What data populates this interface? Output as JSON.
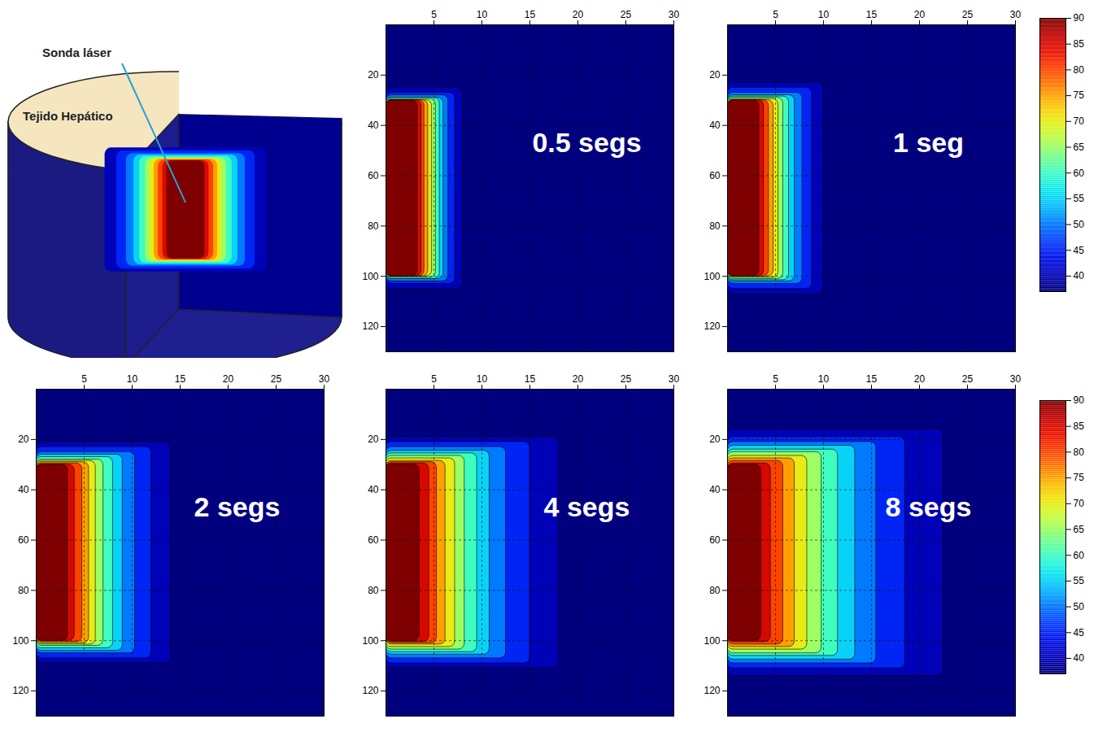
{
  "illustration": {
    "probe_label": "Sonda láser",
    "tissue_label": "Tejido Hepático"
  },
  "colorbar": {
    "range": [
      37,
      90
    ],
    "ticks": [
      40,
      45,
      50,
      55,
      60,
      65,
      70,
      75,
      80,
      85,
      90
    ]
  },
  "chart_data": [
    {
      "type": "contour",
      "title": "0.5 segs",
      "xlim": [
        0,
        30
      ],
      "xticks": [
        5,
        10,
        15,
        20,
        25,
        30
      ],
      "ylim": [
        0,
        130
      ],
      "yticks": [
        20,
        40,
        60,
        80,
        100,
        120
      ],
      "grid": true,
      "base_level": 37,
      "bands": [
        {
          "level": 40,
          "r_max": 8.0,
          "z_min": 25,
          "z_max": 105
        },
        {
          "level": 45,
          "r_max": 7.2,
          "z_min": 27,
          "z_max": 103
        },
        {
          "level": 50,
          "r_max": 6.5,
          "z_min": 28,
          "z_max": 102
        },
        {
          "level": 55,
          "r_max": 6.0,
          "z_min": 29,
          "z_max": 101
        },
        {
          "level": 60,
          "r_max": 5.6,
          "z_min": 29,
          "z_max": 101
        },
        {
          "level": 65,
          "r_max": 5.2,
          "z_min": 29.5,
          "z_max": 100.5
        },
        {
          "level": 70,
          "r_max": 4.8,
          "z_min": 30,
          "z_max": 100
        },
        {
          "level": 75,
          "r_max": 4.4,
          "z_min": 30,
          "z_max": 100
        },
        {
          "level": 80,
          "r_max": 4.0,
          "z_min": 30,
          "z_max": 100
        },
        {
          "level": 85,
          "r_max": 3.7,
          "z_min": 30,
          "z_max": 100
        },
        {
          "level": 90,
          "r_max": 3.3,
          "z_min": 30,
          "z_max": 100
        }
      ]
    },
    {
      "type": "contour",
      "title": "1 seg",
      "xlim": [
        0,
        30
      ],
      "xticks": [
        5,
        10,
        15,
        20,
        25,
        30
      ],
      "ylim": [
        0,
        130
      ],
      "yticks": [
        20,
        40,
        60,
        80,
        100,
        120
      ],
      "grid": true,
      "base_level": 37,
      "bands": [
        {
          "level": 40,
          "r_max": 10.0,
          "z_min": 23,
          "z_max": 107
        },
        {
          "level": 45,
          "r_max": 8.8,
          "z_min": 25,
          "z_max": 105
        },
        {
          "level": 50,
          "r_max": 7.8,
          "z_min": 27,
          "z_max": 103
        },
        {
          "level": 55,
          "r_max": 7.0,
          "z_min": 28,
          "z_max": 102
        },
        {
          "level": 60,
          "r_max": 6.4,
          "z_min": 28.5,
          "z_max": 101.5
        },
        {
          "level": 65,
          "r_max": 5.8,
          "z_min": 29,
          "z_max": 101
        },
        {
          "level": 70,
          "r_max": 5.3,
          "z_min": 29.5,
          "z_max": 100.5
        },
        {
          "level": 75,
          "r_max": 4.8,
          "z_min": 30,
          "z_max": 100
        },
        {
          "level": 80,
          "r_max": 4.3,
          "z_min": 30,
          "z_max": 100
        },
        {
          "level": 85,
          "r_max": 3.8,
          "z_min": 30,
          "z_max": 100
        },
        {
          "level": 90,
          "r_max": 3.3,
          "z_min": 30,
          "z_max": 100
        }
      ]
    },
    {
      "type": "contour",
      "title": "2 segs",
      "xlim": [
        0,
        30
      ],
      "xticks": [
        5,
        10,
        15,
        20,
        25,
        30
      ],
      "ylim": [
        0,
        130
      ],
      "yticks": [
        20,
        40,
        60,
        80,
        100,
        120
      ],
      "grid": true,
      "base_level": 37,
      "bands": [
        {
          "level": 40,
          "r_max": 14.0,
          "z_min": 21,
          "z_max": 109
        },
        {
          "level": 45,
          "r_max": 12.0,
          "z_min": 23,
          "z_max": 107
        },
        {
          "level": 50,
          "r_max": 10.3,
          "z_min": 25,
          "z_max": 105
        },
        {
          "level": 55,
          "r_max": 9.0,
          "z_min": 26,
          "z_max": 104
        },
        {
          "level": 60,
          "r_max": 8.0,
          "z_min": 27,
          "z_max": 103
        },
        {
          "level": 65,
          "r_max": 7.0,
          "z_min": 28,
          "z_max": 102
        },
        {
          "level": 70,
          "r_max": 6.2,
          "z_min": 28.5,
          "z_max": 101.5
        },
        {
          "level": 75,
          "r_max": 5.5,
          "z_min": 29,
          "z_max": 101
        },
        {
          "level": 80,
          "r_max": 4.8,
          "z_min": 29.5,
          "z_max": 100.5
        },
        {
          "level": 85,
          "r_max": 4.0,
          "z_min": 30,
          "z_max": 100
        },
        {
          "level": 90,
          "r_max": 3.3,
          "z_min": 30,
          "z_max": 100
        }
      ]
    },
    {
      "type": "contour",
      "title": "4 segs",
      "xlim": [
        0,
        30
      ],
      "xticks": [
        5,
        10,
        15,
        20,
        25,
        30
      ],
      "ylim": [
        0,
        130
      ],
      "yticks": [
        20,
        40,
        60,
        80,
        100,
        120
      ],
      "grid": true,
      "base_level": 37,
      "bands": [
        {
          "level": 40,
          "r_max": 18.0,
          "z_min": 19,
          "z_max": 111
        },
        {
          "level": 45,
          "r_max": 15.0,
          "z_min": 21,
          "z_max": 109
        },
        {
          "level": 50,
          "r_max": 12.5,
          "z_min": 23,
          "z_max": 107
        },
        {
          "level": 55,
          "r_max": 10.8,
          "z_min": 24.5,
          "z_max": 105.5
        },
        {
          "level": 60,
          "r_max": 9.5,
          "z_min": 25.5,
          "z_max": 104.5
        },
        {
          "level": 65,
          "r_max": 8.2,
          "z_min": 26.5,
          "z_max": 103.5
        },
        {
          "level": 70,
          "r_max": 7.2,
          "z_min": 27.5,
          "z_max": 102.5
        },
        {
          "level": 75,
          "r_max": 6.2,
          "z_min": 28.5,
          "z_max": 101.5
        },
        {
          "level": 80,
          "r_max": 5.3,
          "z_min": 29,
          "z_max": 101
        },
        {
          "level": 85,
          "r_max": 4.5,
          "z_min": 29.5,
          "z_max": 100.5
        },
        {
          "level": 90,
          "r_max": 3.5,
          "z_min": 30,
          "z_max": 100
        }
      ]
    },
    {
      "type": "contour",
      "title": "8 segs",
      "xlim": [
        0,
        30
      ],
      "xticks": [
        5,
        10,
        15,
        20,
        25,
        30
      ],
      "ylim": [
        0,
        130
      ],
      "yticks": [
        20,
        40,
        60,
        80,
        100,
        120
      ],
      "grid": true,
      "base_level": 37,
      "bands": [
        {
          "level": 40,
          "r_max": 22.5,
          "z_min": 16,
          "z_max": 114
        },
        {
          "level": 45,
          "r_max": 18.5,
          "z_min": 19,
          "z_max": 111
        },
        {
          "level": 50,
          "r_max": 15.5,
          "z_min": 21,
          "z_max": 109
        },
        {
          "level": 55,
          "r_max": 13.3,
          "z_min": 22.5,
          "z_max": 107.5
        },
        {
          "level": 60,
          "r_max": 11.5,
          "z_min": 24,
          "z_max": 106
        },
        {
          "level": 65,
          "r_max": 9.8,
          "z_min": 25,
          "z_max": 105
        },
        {
          "level": 70,
          "r_max": 8.3,
          "z_min": 26.5,
          "z_max": 103.5
        },
        {
          "level": 75,
          "r_max": 7.0,
          "z_min": 27.5,
          "z_max": 102.5
        },
        {
          "level": 80,
          "r_max": 5.8,
          "z_min": 28.5,
          "z_max": 101.5
        },
        {
          "level": 85,
          "r_max": 4.5,
          "z_min": 29.5,
          "z_max": 100.5
        },
        {
          "level": 90,
          "r_max": 3.5,
          "z_min": 30,
          "z_max": 100
        }
      ]
    }
  ]
}
